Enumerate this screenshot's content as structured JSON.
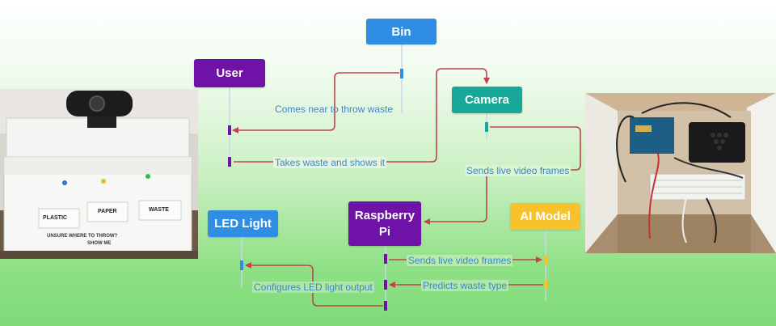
{
  "participants": {
    "bin": {
      "label": "Bin",
      "color": "#2f8de4"
    },
    "user": {
      "label": "User",
      "color": "#6e12a8"
    },
    "camera": {
      "label": "Camera",
      "color": "#18a89a"
    },
    "led": {
      "label": "LED Light",
      "color": "#2f8de4"
    },
    "pi": {
      "label": "Raspberry Pi",
      "color": "#6e12a8"
    },
    "ai": {
      "label": "AI Model",
      "color": "#f8c22c"
    }
  },
  "messages": {
    "m1": "Comes near to throw waste",
    "m2": "Takes waste and shows it",
    "m3": "Sends live video frames",
    "m4": "Sends live video frames",
    "m5": "Predicts waste type",
    "m6": "Configures LED light output"
  },
  "left_photo": {
    "labels": [
      "PLASTIC",
      "PAPER",
      "WASTE"
    ],
    "caption1": "UNSURE WHERE TO THROW?",
    "caption2": "SHOW ME"
  },
  "colors": {
    "arrow": "#c0444a",
    "activation_purple": "#6e12a8",
    "activation_blue": "#2f8de4",
    "activation_teal": "#18a89a",
    "activation_yellow": "#f8c22c"
  }
}
